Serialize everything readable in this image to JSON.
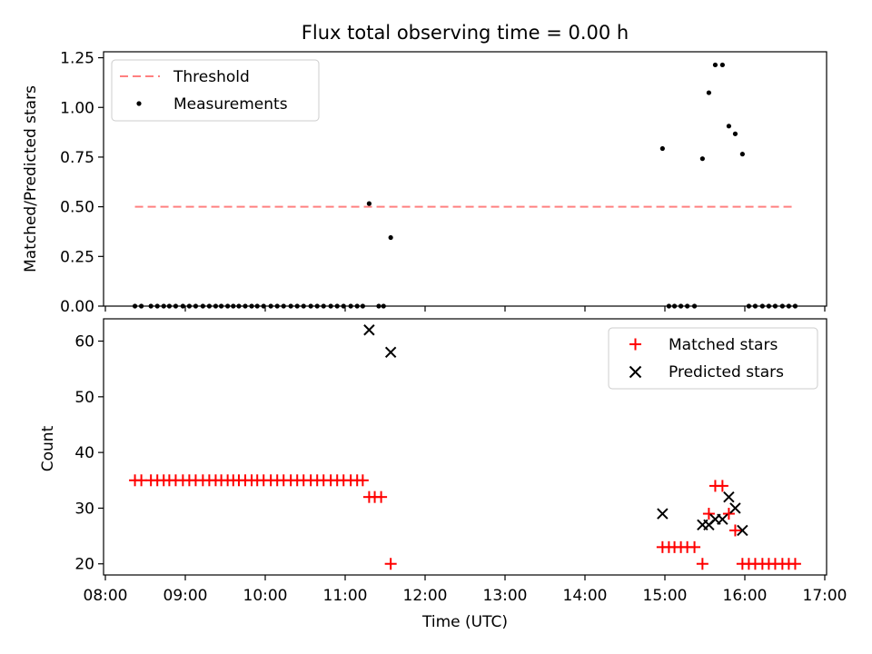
{
  "title": "Flux total observing time = 0.00 h",
  "chart_data": [
    {
      "type": "scatter",
      "name": "ratio-panel",
      "ylabel": "Matched/Predicted stars",
      "ylim": [
        0,
        1.28
      ],
      "yticks": [
        0.0,
        0.25,
        0.5,
        0.75,
        1.0,
        1.25
      ],
      "ytick_labels": [
        "0.00",
        "0.25",
        "0.50",
        "0.75",
        "1.00",
        "1.25"
      ],
      "legend": {
        "position": "top-left",
        "entries": [
          "Threshold",
          "Measurements"
        ]
      },
      "threshold": {
        "label": "Threshold",
        "value": 0.5,
        "x_start": 8.37,
        "x_end": 16.63,
        "color": "#ff8080"
      },
      "series": [
        {
          "name": "Measurements",
          "color": "#000000",
          "x": [
            8.37,
            8.45,
            8.57,
            8.65,
            8.73,
            8.8,
            8.88,
            8.97,
            9.05,
            9.13,
            9.22,
            9.3,
            9.38,
            9.45,
            9.53,
            9.6,
            9.67,
            9.75,
            9.83,
            9.9,
            9.98,
            10.07,
            10.15,
            10.23,
            10.32,
            10.4,
            10.48,
            10.57,
            10.65,
            10.73,
            10.82,
            10.9,
            10.98,
            11.07,
            11.15,
            11.22,
            11.3,
            11.42,
            11.48,
            11.57,
            14.97,
            15.05,
            15.12,
            15.2,
            15.28,
            15.37,
            15.47,
            15.55,
            15.63,
            15.72,
            15.8,
            15.88,
            15.97,
            16.05,
            16.13,
            16.22,
            16.3,
            16.38,
            16.47,
            16.55,
            16.63
          ],
          "y": [
            0,
            0,
            0,
            0,
            0,
            0,
            0,
            0,
            0,
            0,
            0,
            0,
            0,
            0,
            0,
            0,
            0,
            0,
            0,
            0,
            0,
            0,
            0,
            0,
            0,
            0,
            0,
            0,
            0,
            0,
            0,
            0,
            0,
            0,
            0,
            0,
            0.516,
            0,
            0,
            0.345,
            0.793,
            0,
            0,
            0,
            0,
            0,
            0.742,
            1.074,
            1.214,
            1.214,
            0.906,
            0.867,
            0.765,
            0,
            0,
            0,
            0,
            0,
            0,
            0,
            0
          ]
        }
      ]
    },
    {
      "type": "scatter",
      "name": "count-panel",
      "xlabel": "Time (UTC)",
      "ylabel": "Count",
      "xlim": [
        8.0,
        17.0
      ],
      "ylim": [
        18,
        64
      ],
      "xticks": [
        "08:00",
        "09:00",
        "10:00",
        "11:00",
        "12:00",
        "13:00",
        "14:00",
        "15:00",
        "16:00",
        "17:00"
      ],
      "yticks": [
        20,
        30,
        40,
        50,
        60
      ],
      "legend": {
        "position": "top-right",
        "entries": [
          "Matched stars",
          "Predicted stars"
        ]
      },
      "series": [
        {
          "name": "Matched stars",
          "marker": "+",
          "color": "#ff0000",
          "x": [
            8.37,
            8.45,
            8.57,
            8.65,
            8.73,
            8.8,
            8.88,
            8.97,
            9.05,
            9.13,
            9.22,
            9.3,
            9.38,
            9.45,
            9.53,
            9.6,
            9.67,
            9.75,
            9.83,
            9.9,
            9.98,
            10.07,
            10.15,
            10.23,
            10.32,
            10.4,
            10.48,
            10.57,
            10.65,
            10.73,
            10.82,
            10.9,
            10.98,
            11.07,
            11.15,
            11.22,
            11.3,
            11.37,
            11.45,
            11.57,
            14.97,
            15.05,
            15.12,
            15.2,
            15.28,
            15.37,
            15.47,
            15.55,
            15.63,
            15.72,
            15.8,
            15.88,
            15.97,
            16.05,
            16.13,
            16.22,
            16.3,
            16.38,
            16.47,
            16.55,
            16.63
          ],
          "y": [
            35,
            35,
            35,
            35,
            35,
            35,
            35,
            35,
            35,
            35,
            35,
            35,
            35,
            35,
            35,
            35,
            35,
            35,
            35,
            35,
            35,
            35,
            35,
            35,
            35,
            35,
            35,
            35,
            35,
            35,
            35,
            35,
            35,
            35,
            35,
            35,
            32,
            32,
            32,
            20,
            23,
            23,
            23,
            23,
            23,
            23,
            20,
            29,
            34,
            34,
            29,
            26,
            20,
            20,
            20,
            20,
            20,
            20,
            20,
            20,
            20
          ]
        },
        {
          "name": "Predicted stars",
          "marker": "x",
          "color": "#000000",
          "x": [
            11.3,
            11.57,
            14.97,
            15.47,
            15.55,
            15.63,
            15.72,
            15.8,
            15.88,
            15.97
          ],
          "y": [
            62,
            58,
            29,
            27,
            27,
            28,
            28,
            32,
            30,
            26
          ]
        }
      ]
    }
  ]
}
